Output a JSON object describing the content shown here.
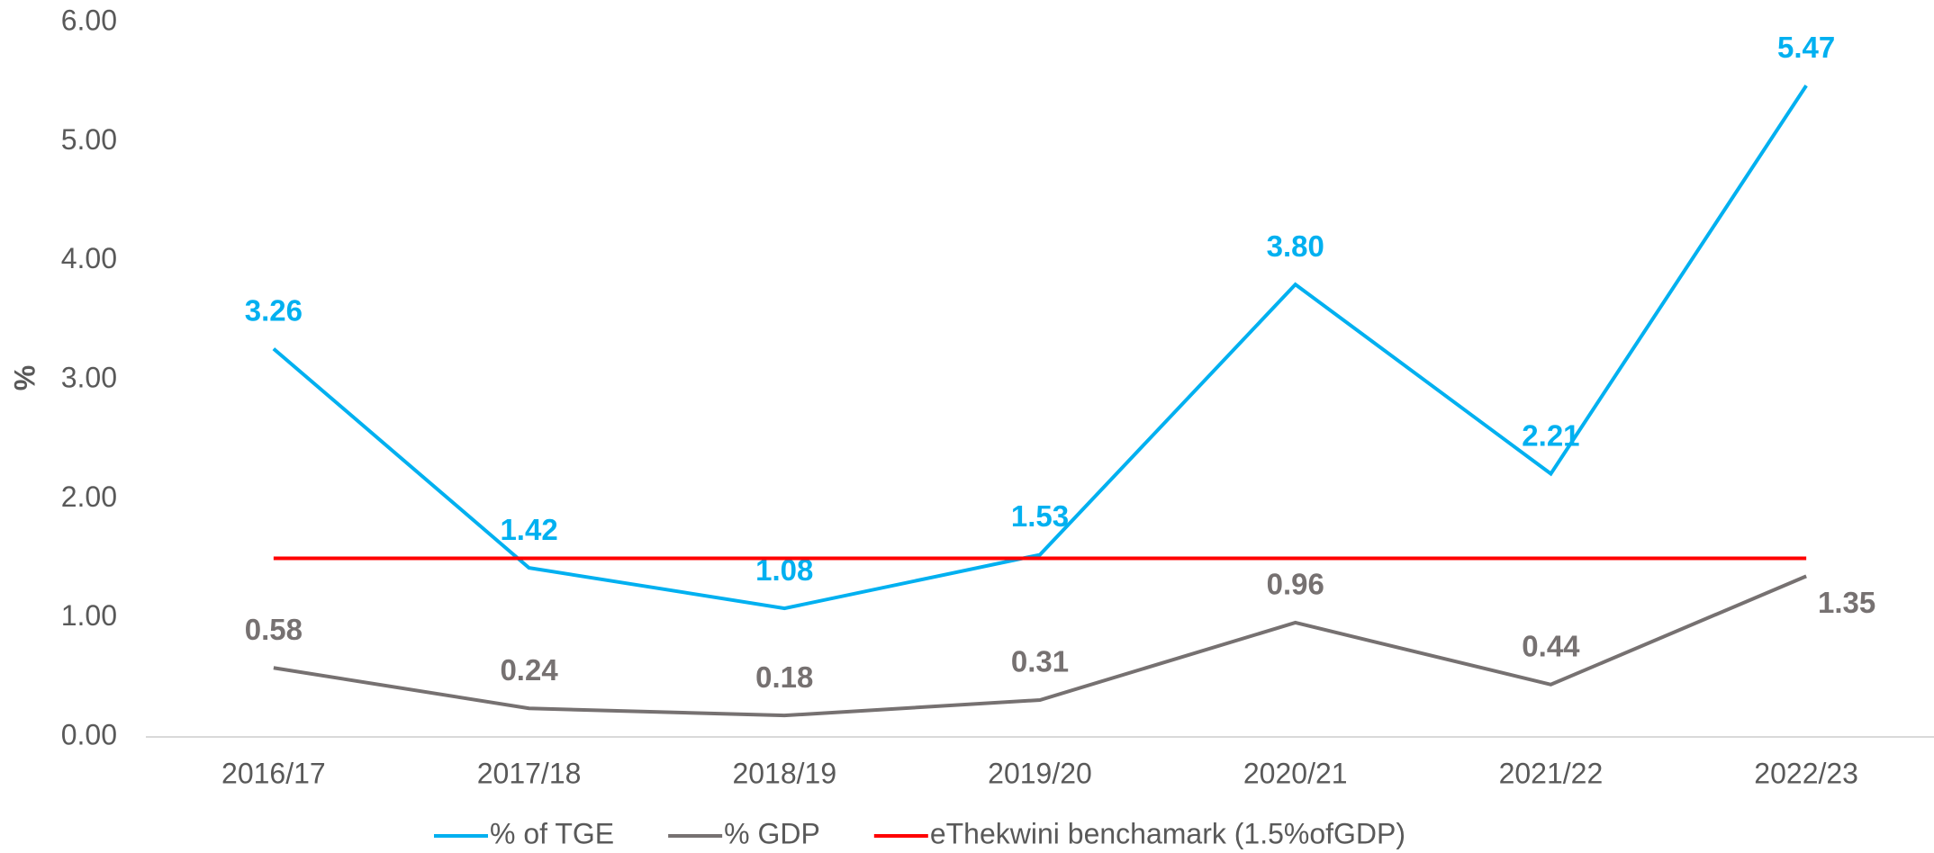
{
  "chart_data": {
    "type": "line",
    "y_label": "%",
    "categories": [
      "2016/17",
      "2017/18",
      "2018/19",
      "2019/20",
      "2020/21",
      "2021/22",
      "2022/23"
    ],
    "series": [
      {
        "name": "% of TGE",
        "color": "#00b0f0",
        "values": [
          3.26,
          1.42,
          1.08,
          1.53,
          3.8,
          2.21,
          5.47
        ],
        "value_labels": [
          "3.26",
          "1.42",
          "1.08",
          "1.53",
          "3.80",
          "2.21",
          "5.47"
        ]
      },
      {
        "name": "% GDP",
        "color": "#767171",
        "values": [
          0.58,
          0.24,
          0.18,
          0.31,
          0.96,
          0.44,
          1.35
        ],
        "value_labels": [
          "0.58",
          "0.24",
          "0.18",
          "0.31",
          "0.96",
          "0.44",
          "1.35"
        ]
      },
      {
        "name": "eThekwini benchamark (1.5%ofGDP)",
        "color": "#ff0000",
        "values": [
          1.5,
          1.5,
          1.5,
          1.5,
          1.5,
          1.5,
          1.5
        ]
      }
    ],
    "ylim": [
      0,
      6
    ],
    "yticks": [
      {
        "value": 0,
        "label": "0.00"
      },
      {
        "value": 1,
        "label": "1.00"
      },
      {
        "value": 2,
        "label": "2.00"
      },
      {
        "value": 3,
        "label": "3.00"
      },
      {
        "value": 4,
        "label": "4.00"
      },
      {
        "value": 5,
        "label": "5.00"
      },
      {
        "value": 6,
        "label": "6.00"
      }
    ],
    "legend": "bottom"
  }
}
